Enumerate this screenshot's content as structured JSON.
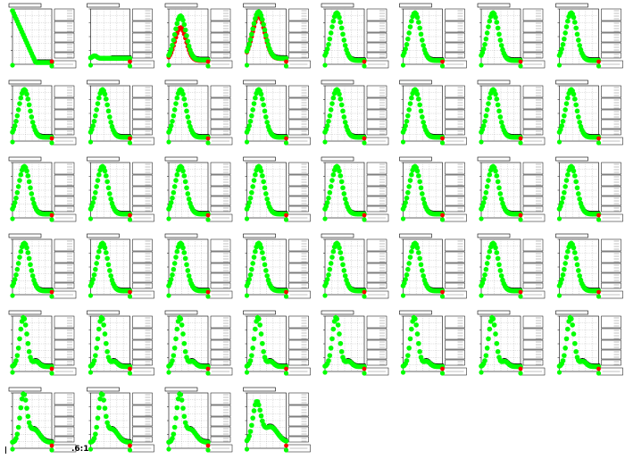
{
  "footer_label": ".6:1",
  "colors": {
    "background": "#ffffff",
    "series_fit": "#00ff00",
    "series_raw": "#ff0000",
    "series_model": "#000000",
    "axis": "#000000"
  },
  "layout_spec": {
    "columns": 8,
    "rows": 6
  },
  "chart_data": {
    "type": "scatter",
    "panel_count": 44,
    "series_names": [],
    "grid": true,
    "panels": [
      {
        "id": 1,
        "shape": "early-decline"
      },
      {
        "id": 2,
        "shape": "flat-low"
      },
      {
        "id": 3,
        "shape": "peak-mixed"
      },
      {
        "id": 4,
        "shape": "peak-red"
      },
      {
        "id": 5,
        "shape": "peak"
      },
      {
        "id": 6,
        "shape": "peak"
      },
      {
        "id": 7,
        "shape": "peak"
      },
      {
        "id": 8,
        "shape": "peak"
      },
      {
        "id": 9,
        "shape": "peak"
      },
      {
        "id": 10,
        "shape": "peak"
      },
      {
        "id": 11,
        "shape": "peak"
      },
      {
        "id": 12,
        "shape": "peak"
      },
      {
        "id": 13,
        "shape": "peak"
      },
      {
        "id": 14,
        "shape": "peak"
      },
      {
        "id": 15,
        "shape": "peak"
      },
      {
        "id": 16,
        "shape": "peak"
      },
      {
        "id": 17,
        "shape": "peak"
      },
      {
        "id": 18,
        "shape": "peak"
      },
      {
        "id": 19,
        "shape": "peak"
      },
      {
        "id": 20,
        "shape": "peak"
      },
      {
        "id": 21,
        "shape": "peak"
      },
      {
        "id": 22,
        "shape": "peak"
      },
      {
        "id": 23,
        "shape": "peak"
      },
      {
        "id": 24,
        "shape": "peak"
      },
      {
        "id": 25,
        "shape": "peak"
      },
      {
        "id": 26,
        "shape": "peak"
      },
      {
        "id": 27,
        "shape": "peak"
      },
      {
        "id": 28,
        "shape": "peak"
      },
      {
        "id": 29,
        "shape": "peak"
      },
      {
        "id": 30,
        "shape": "peak"
      },
      {
        "id": 31,
        "shape": "peak"
      },
      {
        "id": 32,
        "shape": "peak"
      },
      {
        "id": 33,
        "shape": "sharp"
      },
      {
        "id": 34,
        "shape": "sharp"
      },
      {
        "id": 35,
        "shape": "sharp"
      },
      {
        "id": 36,
        "shape": "sharp"
      },
      {
        "id": 37,
        "shape": "sharp"
      },
      {
        "id": 38,
        "shape": "sharp"
      },
      {
        "id": 39,
        "shape": "sharp"
      },
      {
        "id": 40,
        "shape": "sharp"
      },
      {
        "id": 41,
        "shape": "sharp-tail"
      },
      {
        "id": 42,
        "shape": "sharp-tail"
      },
      {
        "id": 43,
        "shape": "sharp-tail"
      },
      {
        "id": 44,
        "shape": "broad-tail"
      }
    ]
  }
}
